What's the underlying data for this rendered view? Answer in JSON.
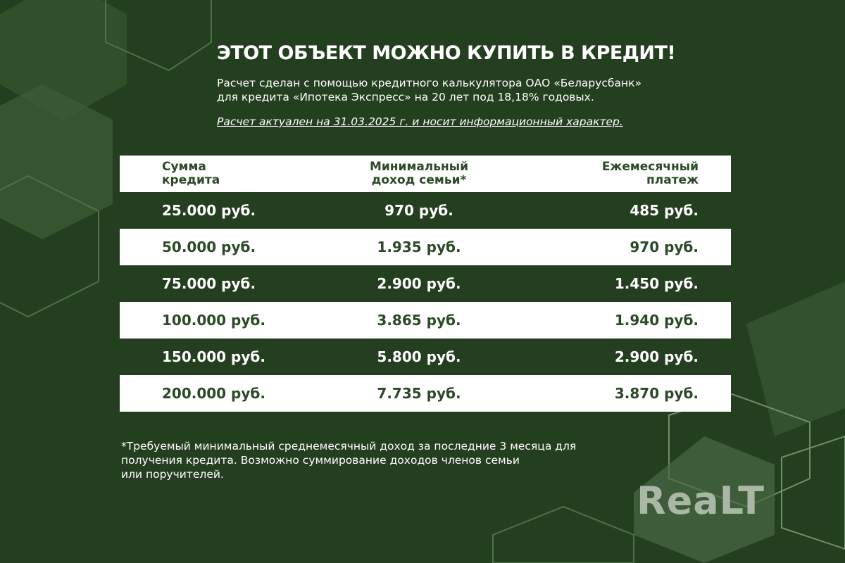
{
  "header": {
    "title": "ЭТОТ ОБЪЕКТ МОЖНО КУПИТЬ В КРЕДИТ!",
    "subtitle_line1": "Расчет сделан с помощью кредитного калькулятора ОАО «Беларусбанк»",
    "subtitle_line2": "для кредита «Ипотека Экспресс» на 20 лет под 18,18% годовых.",
    "note": "Расчет актуален на 31.03.2025 г. и носит информационный характер."
  },
  "table": {
    "headers": [
      [
        "Сумма",
        "кредита"
      ],
      [
        "Минимальный",
        "доход семьи*"
      ],
      [
        "Ежемесячный",
        "платеж"
      ]
    ],
    "rows": [
      [
        "25.000 руб.",
        "970 руб.",
        "485 руб."
      ],
      [
        "50.000 руб.",
        "1.935 руб.",
        "970 руб."
      ],
      [
        "75.000 руб.",
        "2.900 руб.",
        "1.450 руб."
      ],
      [
        "100.000 руб.",
        "3.865 руб.",
        "1.940 руб."
      ],
      [
        "150.000 руб.",
        "5.800 руб.",
        "2.900 руб."
      ],
      [
        "200.000 руб.",
        "7.735 руб.",
        "3.870 руб."
      ]
    ]
  },
  "footnote": {
    "line1": "*Требуемый минимальный среднемесячный доход за последние 3 месяца для",
    "line2": "получения кредита. Возможно суммирование доходов членов семьи",
    "line3": "или поручителей."
  },
  "logo": "REALT",
  "colors": {
    "background": "#243f1f",
    "accent_text": "#2b4a26",
    "row_light": "#ffffff"
  }
}
